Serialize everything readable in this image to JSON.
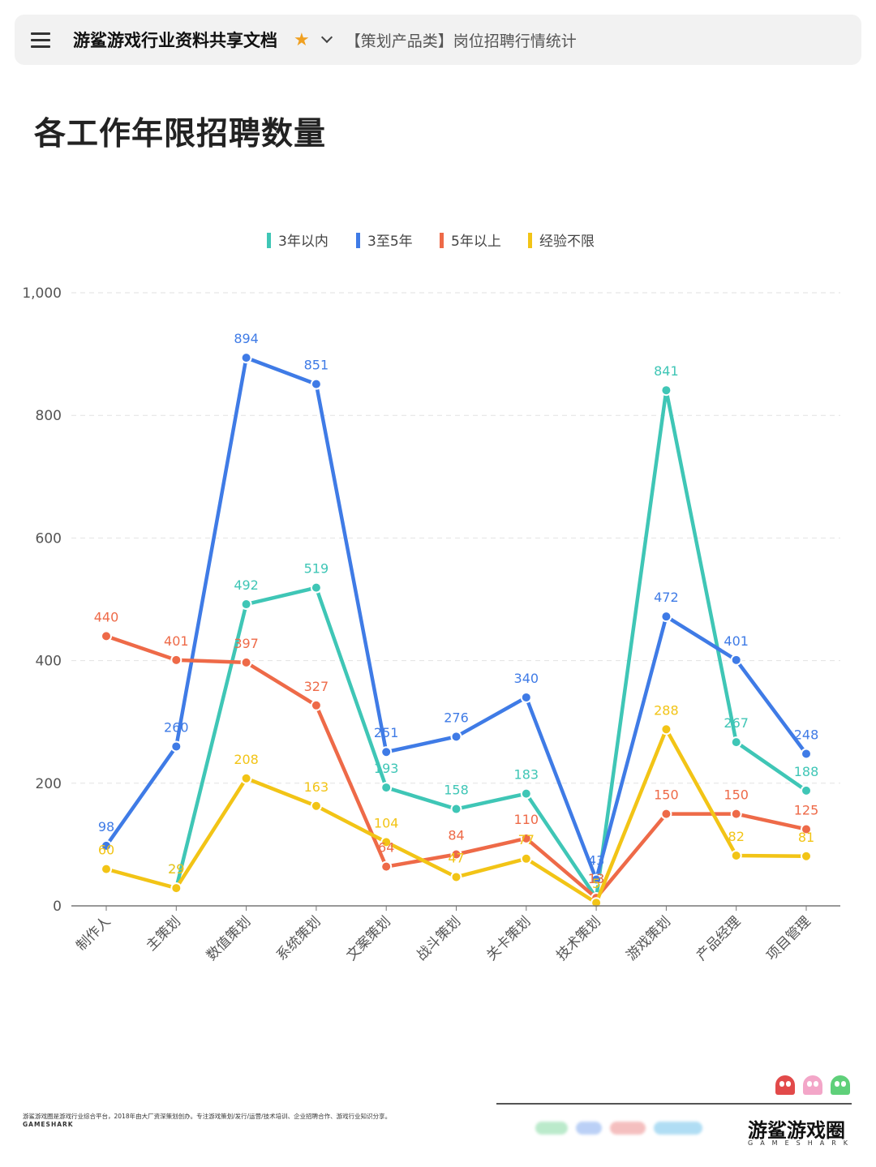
{
  "header": {
    "app_title": "游鲨游戏行业资料共享文档",
    "doc_title": "【策划产品类】岗位招聘行情统计"
  },
  "page_title": "各工作年限招聘数量",
  "colors": {
    "teal": "#3fc6b6",
    "blue": "#3f7be6",
    "orange": "#ee6a48",
    "yellow": "#f2c416",
    "grid": "#e2e2e2"
  },
  "chart_data": {
    "type": "line",
    "title": "各工作年限招聘数量",
    "xlabel": "",
    "ylabel": "",
    "categories": [
      "制作人",
      "主策划",
      "数值策划",
      "系统策划",
      "文案策划",
      "战斗策划",
      "关卡策划",
      "技术策划",
      "游戏策划",
      "产品经理",
      "项目管理"
    ],
    "ylim": [
      0,
      1000
    ],
    "yticks": [
      0,
      200,
      400,
      600,
      800,
      1000
    ],
    "ytick_labels": [
      "0",
      "200",
      "400",
      "600",
      "800",
      "1,000"
    ],
    "grid": true,
    "legend_position": "top-center",
    "series": [
      {
        "name": "3年以内",
        "color": "#3fc6b6",
        "values": [
          null,
          29,
          492,
          519,
          193,
          158,
          183,
          13,
          841,
          267,
          188
        ]
      },
      {
        "name": "3至5年",
        "color": "#3f7be6",
        "values": [
          98,
          260,
          894,
          851,
          251,
          276,
          340,
          43,
          472,
          401,
          248
        ]
      },
      {
        "name": "5年以上",
        "color": "#ee6a48",
        "values": [
          440,
          401,
          397,
          327,
          64,
          84,
          110,
          13,
          150,
          150,
          125
        ]
      },
      {
        "name": "经验不限",
        "color": "#f2c416",
        "values": [
          60,
          29,
          208,
          163,
          104,
          47,
          77,
          5,
          288,
          82,
          81
        ]
      }
    ]
  },
  "footer": {
    "description": "游鲨游戏圈是游戏行业综合平台，2018年由大厂资深策划创办。专注游戏策划/发行/运营/技术培训、企业招聘合作、游戏行业知识分享。",
    "sub": "GAMESHARK",
    "brand": "游鲨游戏圈",
    "brand_sub": "GAMESHARK"
  }
}
